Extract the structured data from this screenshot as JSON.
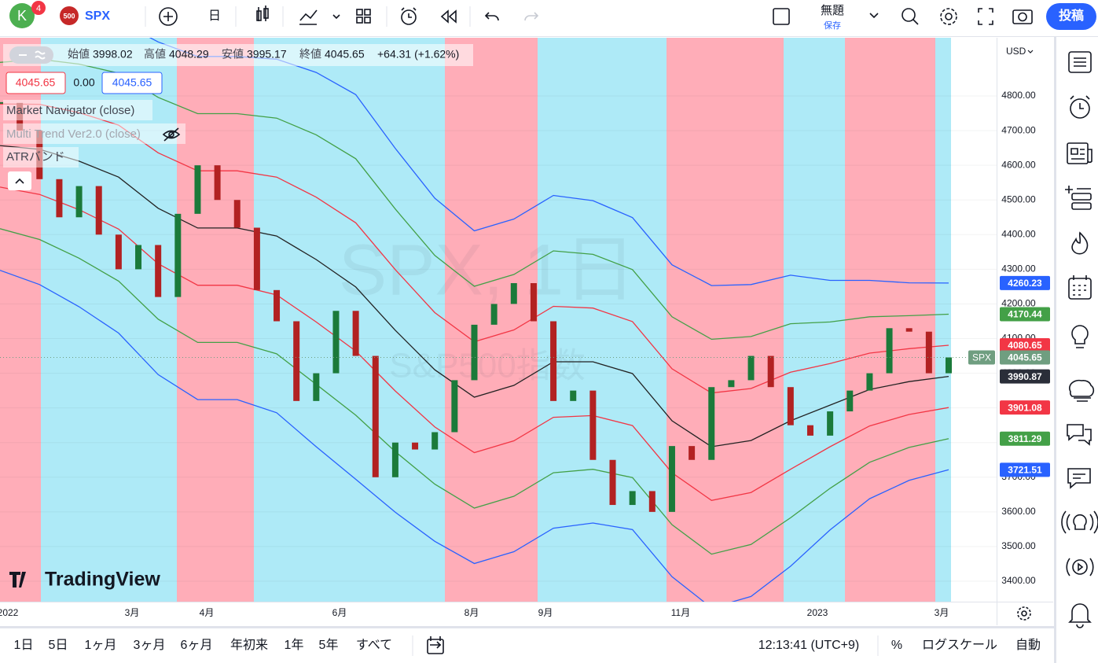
{
  "toolbar": {
    "avatar": "K",
    "badge": "4",
    "symbol_badge": "500",
    "symbol": "SPX",
    "interval": "日",
    "layout_name": "無題",
    "save": "保存",
    "publish": "投稿"
  },
  "legend": {
    "ohlc": [
      {
        "label": "始値",
        "value": 3998.02
      },
      {
        "label": "高値",
        "value": 4048.29
      },
      {
        "label": "安値",
        "value": 3995.17
      },
      {
        "label": "終値",
        "value": 4045.65
      }
    ],
    "change": "+64.31 (+1.62%)",
    "price_boxes": [
      4045.65,
      "0.00",
      4045.65
    ],
    "indicators": [
      "Market Navigator (close)",
      "Multi Trend Ver2.0 (close)",
      "ATRバンド"
    ]
  },
  "watermark": {
    "title": "SPX, 1日",
    "subtitle": "S&P500指数"
  },
  "logo": "TradingView",
  "chart_data": {
    "type": "candlestick",
    "currency": "USD",
    "ylim": [
      3341,
      4968
    ],
    "yticks": [
      {
        "value": 3400,
        "label": "3400.00"
      },
      {
        "value": 3500,
        "label": "3500.00"
      },
      {
        "value": 3600,
        "label": "3600.00"
      },
      {
        "value": 3700,
        "label": "3700.00"
      },
      {
        "value": 3800,
        "label": "3800.00"
      },
      {
        "value": 3900,
        "label": "3900.00"
      },
      {
        "value": 4000,
        "label": "4000.00"
      },
      {
        "value": 4100,
        "label": "4100.00"
      },
      {
        "value": 4200,
        "label": "4200.00"
      },
      {
        "value": 4300,
        "label": "4300.00"
      },
      {
        "value": 4400,
        "label": "4400.00"
      },
      {
        "value": 4500,
        "label": "4500.00"
      },
      {
        "value": 4600,
        "label": "4600.00"
      },
      {
        "value": 4700,
        "label": "4700.00"
      },
      {
        "value": 4800,
        "label": "4800.00"
      }
    ],
    "x_labels": [
      "2022",
      "3月",
      "4月",
      "6月",
      "8月",
      "9月",
      "11月",
      "2023",
      "3月"
    ],
    "close": [
      4780,
      4700,
      4560,
      4450,
      4540,
      4400,
      4300,
      4370,
      4220,
      4460,
      4600,
      4500,
      4420,
      4240,
      4150,
      3920,
      4000,
      4180,
      4050,
      3700,
      3800,
      3780,
      3830,
      3980,
      4140,
      4200,
      4260,
      4150,
      3920,
      3950,
      3750,
      3620,
      3660,
      3600,
      3790,
      3750,
      3960,
      3980,
      4050,
      3960,
      3850,
      3820,
      3890,
      3950,
      4000,
      4130,
      4120,
      4000,
      4045.65
    ],
    "up_color": "#1b7a3a",
    "down_color": "#b22222",
    "series": [
      {
        "color": "#2962ff",
        "values": [
          5017,
          5036,
          5032,
          5016,
          4956,
          4914,
          4914,
          4906,
          4868,
          4804,
          4649,
          4505,
          4411,
          4445,
          4513,
          4498,
          4449,
          4313,
          4253,
          4256,
          4283,
          4268,
          4268,
          4261,
          4260.23
        ]
      },
      {
        "color": "#43a047",
        "values": [
          4897,
          4906,
          4892,
          4866,
          4796,
          4749,
          4749,
          4736,
          4688,
          4619,
          4474,
          4340,
          4251,
          4285,
          4353,
          4343,
          4299,
          4163,
          4098,
          4106,
          4143,
          4148,
          4163,
          4166,
          4170.44
        ]
      },
      {
        "color": "#f23645",
        "values": [
          4777,
          4776,
          4752,
          4716,
          4636,
          4584,
          4584,
          4566,
          4508,
          4434,
          4299,
          4175,
          4091,
          4125,
          4193,
          4188,
          4149,
          4013,
          3943,
          3956,
          4003,
          4028,
          4058,
          4071,
          4080.65
        ]
      },
      {
        "color": "#222222",
        "values": [
          4657,
          4646,
          4612,
          4566,
          4476,
          4419,
          4419,
          4396,
          4328,
          4249,
          4124,
          4010,
          3931,
          3965,
          4033,
          4033,
          3999,
          3863,
          3788,
          3806,
          3863,
          3908,
          3953,
          3976,
          3990.87
        ]
      },
      {
        "color": "#f23645",
        "values": [
          4537,
          4516,
          4472,
          4416,
          4316,
          4254,
          4254,
          4226,
          4148,
          4064,
          3949,
          3845,
          3771,
          3805,
          3873,
          3878,
          3849,
          3713,
          3633,
          3656,
          3723,
          3788,
          3848,
          3881,
          3901.08
        ]
      },
      {
        "color": "#43a047",
        "values": [
          4417,
          4386,
          4332,
          4266,
          4156,
          4089,
          4089,
          4056,
          3968,
          3879,
          3774,
          3680,
          3611,
          3645,
          3713,
          3723,
          3699,
          3563,
          3478,
          3506,
          3583,
          3668,
          3743,
          3786,
          3811.29
        ]
      },
      {
        "color": "#2962ff",
        "values": [
          4297,
          4256,
          4192,
          4116,
          3996,
          3924,
          3924,
          3886,
          3788,
          3694,
          3599,
          3515,
          3451,
          3485,
          3553,
          3568,
          3549,
          3413,
          3323,
          3356,
          3443,
          3548,
          3638,
          3691,
          3721.51
        ]
      }
    ],
    "price_tags": [
      {
        "value": 4260.23,
        "color": "#2962ff"
      },
      {
        "value": 4170.44,
        "color": "#43a047"
      },
      {
        "value": 4080.65,
        "color": "#f23645"
      },
      {
        "value": 3990.87,
        "color": "#2a2e39"
      },
      {
        "value": 3901.08,
        "color": "#f23645"
      },
      {
        "value": 3811.29,
        "color": "#43a047"
      },
      {
        "value": 3721.51,
        "color": "#2962ff"
      }
    ],
    "last_price": {
      "label": "SPX",
      "value": 4045.65,
      "color": "#6f9e80"
    }
  },
  "bottom_bar": {
    "ranges": [
      "1日",
      "5日",
      "1ヶ月",
      "3ヶ月",
      "6ヶ月",
      "年初来",
      "1年",
      "5年",
      "すべて"
    ],
    "clock": "12:13:41 (UTC+9)",
    "options": [
      "%",
      "ログスケール",
      "自動"
    ]
  }
}
